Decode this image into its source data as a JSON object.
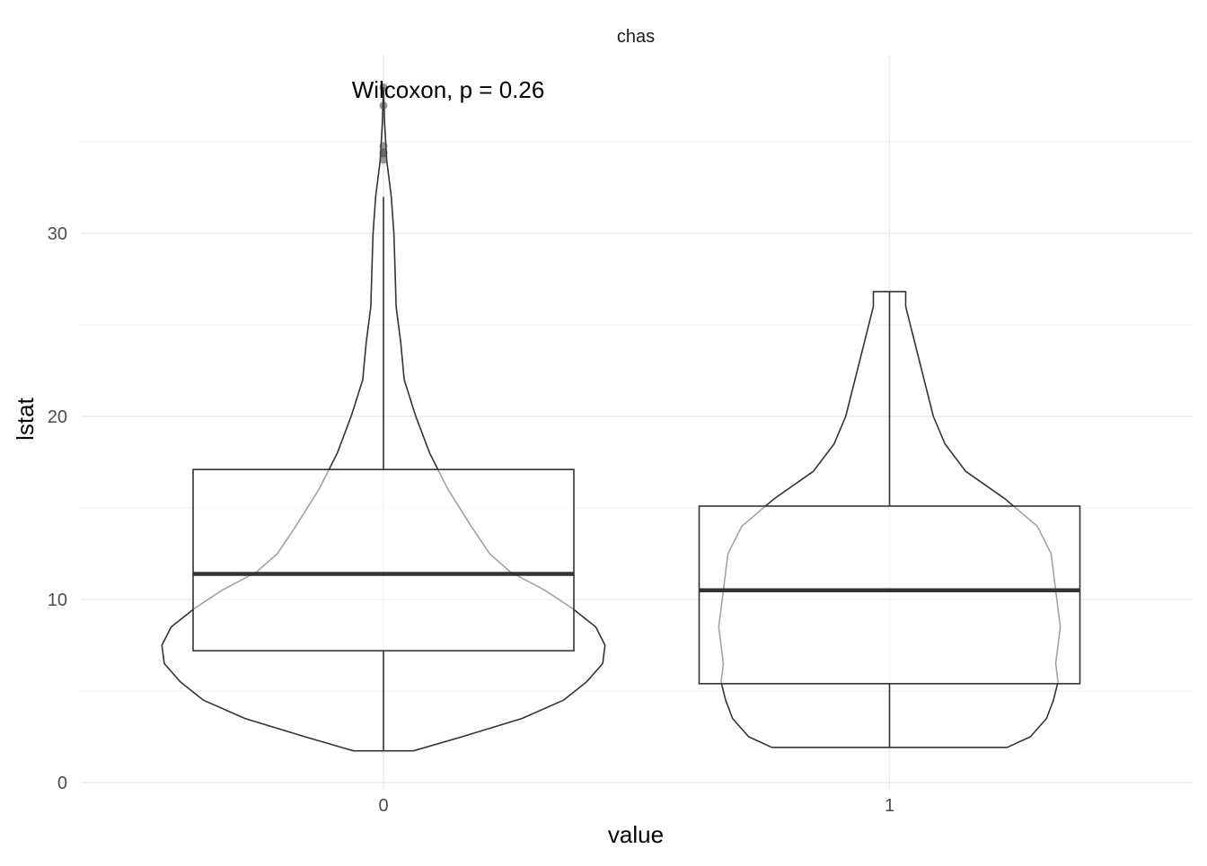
{
  "chart_data": {
    "type": "violin+box",
    "facet": "chas",
    "xlabel": "value",
    "ylabel": "lstat",
    "categories": [
      "0",
      "1"
    ],
    "ylim": [
      0,
      39
    ],
    "yticks": [
      0,
      10,
      20,
      30
    ],
    "ytick_labels": [
      "0",
      "10",
      "20",
      "30"
    ],
    "grid": true,
    "annotation": "Wilcoxon, p = 0.26",
    "boxes": [
      {
        "category": "0",
        "min": 1.73,
        "q1": 7.2,
        "median": 11.4,
        "q3": 17.1,
        "whisker_high": 31.99,
        "outliers": [
          34.02,
          34.41,
          34.37,
          34.77,
          36.98,
          37.97
        ]
      },
      {
        "category": "1",
        "min": 1.92,
        "q1": 5.4,
        "median": 10.5,
        "q3": 15.1,
        "whisker_high": 26.82,
        "outliers": []
      }
    ],
    "violins": [
      {
        "category": "0",
        "min": 1.73,
        "max": 37.97,
        "profile": [
          [
            1.73,
            0.13
          ],
          [
            2.5,
            0.34
          ],
          [
            3.5,
            0.6
          ],
          [
            4.5,
            0.78
          ],
          [
            5.5,
            0.88
          ],
          [
            6.5,
            0.95
          ],
          [
            7.5,
            0.96
          ],
          [
            8.5,
            0.92
          ],
          [
            9.5,
            0.82
          ],
          [
            10.5,
            0.7
          ],
          [
            11.5,
            0.55
          ],
          [
            12.5,
            0.46
          ],
          [
            14,
            0.38
          ],
          [
            16,
            0.28
          ],
          [
            18,
            0.2
          ],
          [
            20,
            0.14
          ],
          [
            22,
            0.09
          ],
          [
            24,
            0.075
          ],
          [
            26,
            0.055
          ],
          [
            28,
            0.05
          ],
          [
            30,
            0.045
          ],
          [
            32,
            0.034
          ],
          [
            34,
            0.014
          ],
          [
            36,
            0.005
          ],
          [
            37.97,
            0.0
          ]
        ]
      },
      {
        "category": "1",
        "min": 1.92,
        "max": 26.82,
        "profile": [
          [
            1.92,
            0.51
          ],
          [
            2.5,
            0.61
          ],
          [
            3.5,
            0.68
          ],
          [
            4.5,
            0.71
          ],
          [
            5.5,
            0.73
          ],
          [
            6.5,
            0.72
          ],
          [
            7.5,
            0.73
          ],
          [
            8.5,
            0.74
          ],
          [
            9.5,
            0.73
          ],
          [
            10.5,
            0.72
          ],
          [
            11.5,
            0.71
          ],
          [
            12.5,
            0.7
          ],
          [
            14,
            0.64
          ],
          [
            15.5,
            0.5
          ],
          [
            17,
            0.33
          ],
          [
            18.5,
            0.24
          ],
          [
            20,
            0.19
          ],
          [
            21.5,
            0.16
          ],
          [
            23,
            0.13
          ],
          [
            24.5,
            0.1
          ],
          [
            26,
            0.07
          ],
          [
            26.82,
            0.07
          ]
        ]
      }
    ]
  }
}
